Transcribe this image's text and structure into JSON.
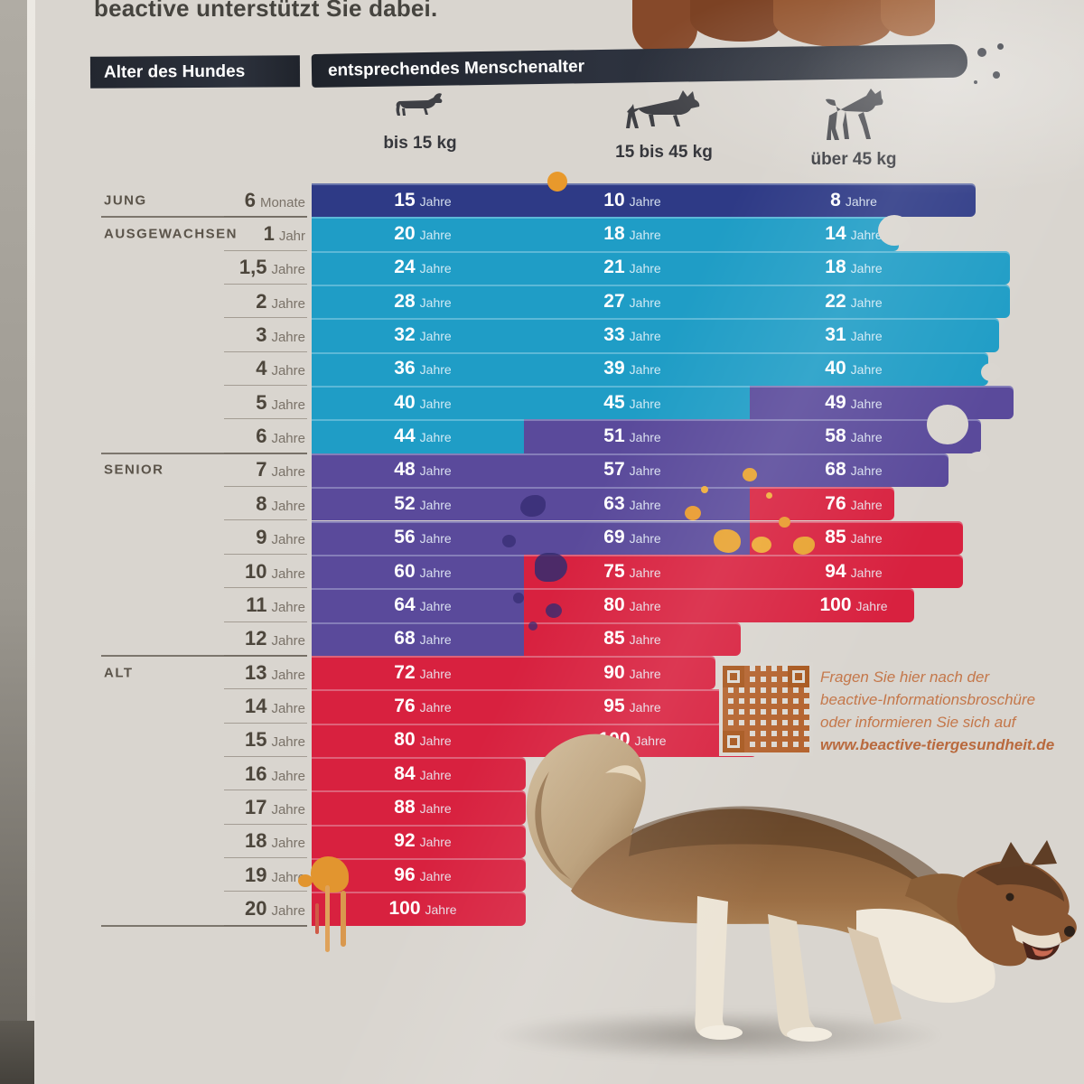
{
  "intro_text": "beactive unterstützt Sie dabei.",
  "header": {
    "col_left": "Alter des Hundes",
    "col_right": "entsprechendes Menschenalter"
  },
  "weight_classes": [
    {
      "label": "bis 15 kg",
      "icon": "small-dog-icon"
    },
    {
      "label": "15 bis 45 kg",
      "icon": "medium-dog-icon"
    },
    {
      "label": "über 45 kg",
      "icon": "large-dog-icon"
    }
  ],
  "info_box": {
    "lines": [
      "Fragen Sie hier nach der",
      "beactive-Informationsbroschüre",
      "oder informieren Sie sich auf"
    ],
    "link": "www.beactive-tiergesundheit.de"
  },
  "chart_data": {
    "type": "table",
    "title": "Alter des Hundes – entsprechendes Menschenalter",
    "unit_in_bars": "Jahre",
    "columns": [
      "bis 15 kg",
      "15 bis 45 kg",
      "über 45 kg"
    ],
    "stage_colors": {
      "jung": "#2e3a86",
      "ausgewachsen": "#1f9dc6",
      "senior": "#5a4a9b",
      "alt": "#d8213f"
    },
    "stages": [
      {
        "label": "JUNG"
      },
      {
        "label": "AUSGEWACHSEN"
      },
      {
        "label": "SENIOR"
      },
      {
        "label": "ALT"
      }
    ],
    "rows": [
      {
        "age": "6",
        "unit": "Monate",
        "stage": "JUNG",
        "cells": [
          {
            "v": "15",
            "s": "jung"
          },
          {
            "v": "10",
            "s": "jung"
          },
          {
            "v": "8",
            "s": "jung"
          }
        ],
        "end": 1080
      },
      {
        "age": "1",
        "unit": "Jahr",
        "stage": "AUSGEWACHSEN",
        "rule": true,
        "cells": [
          {
            "v": "20",
            "s": "ausgewachsen"
          },
          {
            "v": "18",
            "s": "ausgewachsen"
          },
          {
            "v": "14",
            "s": "ausgewachsen"
          }
        ],
        "end": 995
      },
      {
        "age": "1,5",
        "unit": "Jahre",
        "cells": [
          {
            "v": "24",
            "s": "ausgewachsen"
          },
          {
            "v": "21",
            "s": "ausgewachsen"
          },
          {
            "v": "18",
            "s": "ausgewachsen"
          }
        ],
        "end": 1118
      },
      {
        "age": "2",
        "unit": "Jahre",
        "cells": [
          {
            "v": "28",
            "s": "ausgewachsen"
          },
          {
            "v": "27",
            "s": "ausgewachsen"
          },
          {
            "v": "22",
            "s": "ausgewachsen"
          }
        ],
        "end": 1118
      },
      {
        "age": "3",
        "unit": "Jahre",
        "cells": [
          {
            "v": "32",
            "s": "ausgewachsen"
          },
          {
            "v": "33",
            "s": "ausgewachsen"
          },
          {
            "v": "31",
            "s": "ausgewachsen"
          }
        ],
        "end": 1106
      },
      {
        "age": "4",
        "unit": "Jahre",
        "cells": [
          {
            "v": "36",
            "s": "ausgewachsen"
          },
          {
            "v": "39",
            "s": "ausgewachsen"
          },
          {
            "v": "40",
            "s": "ausgewachsen"
          }
        ],
        "end": 1094
      },
      {
        "age": "5",
        "unit": "Jahre",
        "cells": [
          {
            "v": "40",
            "s": "ausgewachsen"
          },
          {
            "v": "45",
            "s": "ausgewachsen"
          },
          {
            "v": "49",
            "s": "senior"
          }
        ],
        "end": 1122
      },
      {
        "age": "6",
        "unit": "Jahre",
        "cells": [
          {
            "v": "44",
            "s": "ausgewachsen"
          },
          {
            "v": "51",
            "s": "senior"
          },
          {
            "v": "58",
            "s": "senior"
          }
        ],
        "end": 1086
      },
      {
        "age": "7",
        "unit": "Jahre",
        "stage": "SENIOR",
        "rule": true,
        "cells": [
          {
            "v": "48",
            "s": "senior"
          },
          {
            "v": "57",
            "s": "senior"
          },
          {
            "v": "68",
            "s": "senior"
          }
        ],
        "end": 1050
      },
      {
        "age": "8",
        "unit": "Jahre",
        "cells": [
          {
            "v": "52",
            "s": "senior"
          },
          {
            "v": "63",
            "s": "senior"
          },
          {
            "v": "76",
            "s": "alt"
          }
        ],
        "end": 990
      },
      {
        "age": "9",
        "unit": "Jahre",
        "cells": [
          {
            "v": "56",
            "s": "senior"
          },
          {
            "v": "69",
            "s": "senior"
          },
          {
            "v": "85",
            "s": "alt"
          }
        ],
        "end": 1066
      },
      {
        "age": "10",
        "unit": "Jahre",
        "cells": [
          {
            "v": "60",
            "s": "senior"
          },
          {
            "v": "75",
            "s": "alt"
          },
          {
            "v": "94",
            "s": "alt"
          }
        ],
        "end": 1066
      },
      {
        "age": "11",
        "unit": "Jahre",
        "cells": [
          {
            "v": "64",
            "s": "senior"
          },
          {
            "v": "80",
            "s": "alt"
          },
          {
            "v": "100",
            "s": "alt"
          }
        ],
        "end": 1012
      },
      {
        "age": "12",
        "unit": "Jahre",
        "cells": [
          {
            "v": "68",
            "s": "senior"
          },
          {
            "v": "85",
            "s": "alt"
          },
          null
        ],
        "end": 820
      },
      {
        "age": "13",
        "unit": "Jahre",
        "stage": "ALT",
        "rule": true,
        "cells": [
          {
            "v": "72",
            "s": "alt"
          },
          {
            "v": "90",
            "s": "alt"
          },
          null
        ],
        "end": 792
      },
      {
        "age": "14",
        "unit": "Jahre",
        "cells": [
          {
            "v": "76",
            "s": "alt"
          },
          {
            "v": "95",
            "s": "alt"
          },
          null
        ],
        "end": 800
      },
      {
        "age": "15",
        "unit": "Jahre",
        "cells": [
          {
            "v": "80",
            "s": "alt"
          },
          {
            "v": "100",
            "s": "alt"
          },
          null
        ],
        "end": 838
      },
      {
        "age": "16",
        "unit": "Jahre",
        "cells": [
          {
            "v": "84",
            "s": "alt"
          },
          null,
          null
        ],
        "end": 582
      },
      {
        "age": "17",
        "unit": "Jahre",
        "cells": [
          {
            "v": "88",
            "s": "alt"
          },
          null,
          null
        ],
        "end": 582
      },
      {
        "age": "18",
        "unit": "Jahre",
        "cells": [
          {
            "v": "92",
            "s": "alt"
          },
          null,
          null
        ],
        "end": 582
      },
      {
        "age": "19",
        "unit": "Jahre",
        "cells": [
          {
            "v": "96",
            "s": "alt"
          },
          null,
          null
        ],
        "end": 582
      },
      {
        "age": "20",
        "unit": "Jahre",
        "cells": [
          {
            "v": "100",
            "s": "alt"
          },
          null,
          null
        ],
        "end": 582,
        "rule_bottom": true
      }
    ]
  }
}
